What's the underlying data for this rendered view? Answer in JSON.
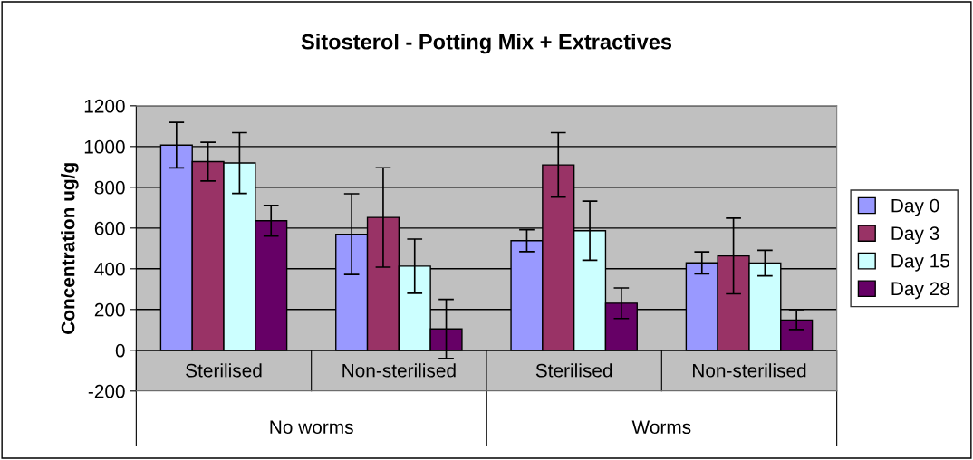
{
  "chart_data": {
    "type": "bar",
    "title": "Sitosterol - Potting Mix + Extractives",
    "ylabel": "Concentration ug/g",
    "categories": [
      "Sterilised",
      "Non-sterilised",
      "Sterilised",
      "Non-sterilised"
    ],
    "series": [
      {
        "name": "Day 0",
        "color": "#9999ff",
        "values": [
          1007,
          570,
          538,
          429
        ],
        "errors": [
          112,
          198,
          54,
          54
        ]
      },
      {
        "name": "Day 3",
        "color": "#993366",
        "values": [
          926,
          652,
          910,
          463
        ],
        "errors": [
          95,
          244,
          158,
          186
        ]
      },
      {
        "name": "Day 15",
        "color": "#ccffff",
        "values": [
          919,
          413,
          587,
          428
        ],
        "errors": [
          149,
          133,
          145,
          63
        ]
      },
      {
        "name": "Day 28",
        "color": "#660066",
        "values": [
          636,
          105,
          231,
          148
        ],
        "errors": [
          75,
          145,
          75,
          46
        ]
      }
    ],
    "annotations": [
      "No worms",
      "Worms"
    ],
    "ylim": [
      -200,
      1200
    ],
    "yticks": [
      -200,
      0,
      200,
      400,
      600,
      800,
      1000,
      1200
    ],
    "grid": "y",
    "legend": "right"
  }
}
